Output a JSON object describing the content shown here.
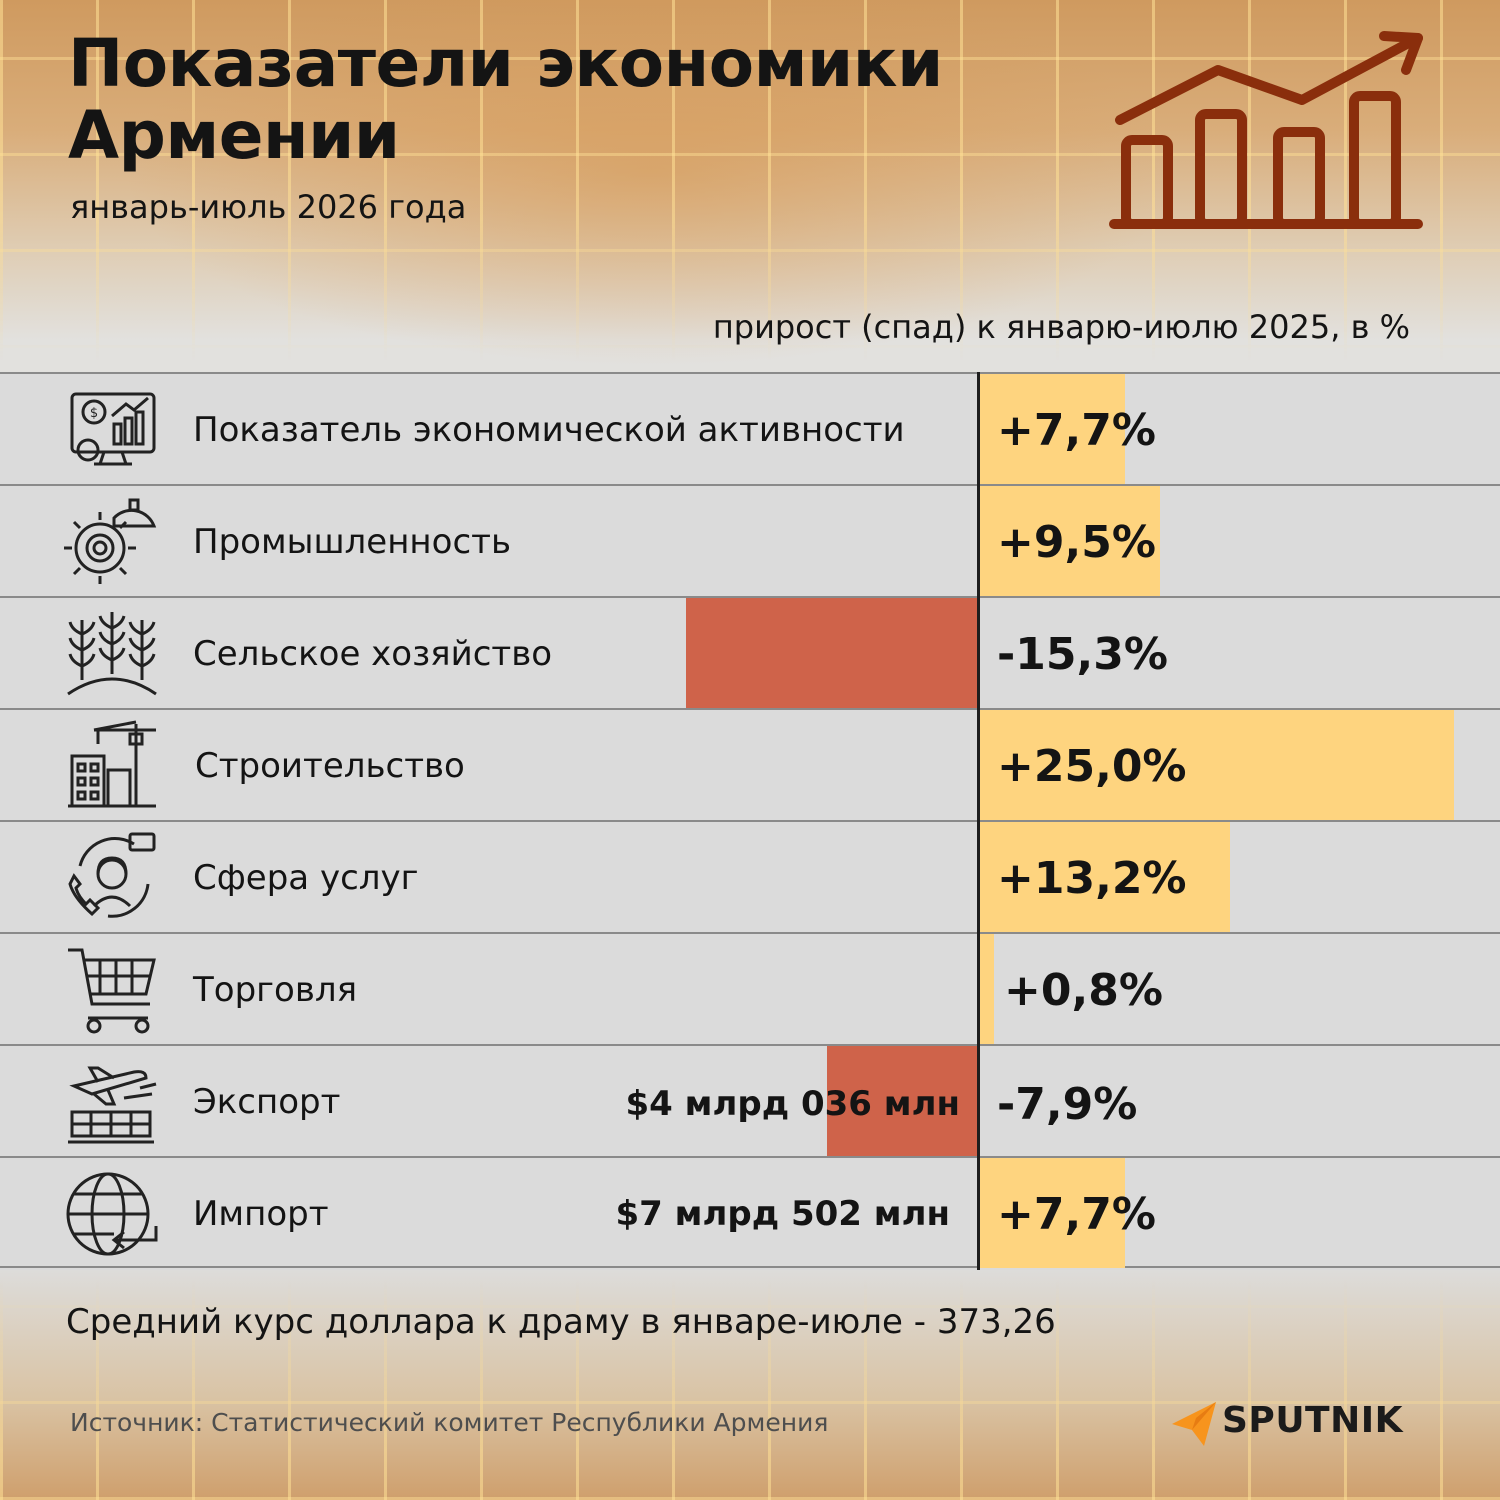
{
  "header": {
    "title": "Показатели экономики Армении",
    "subtitle": "январь-июль 2026 года",
    "column_label": "прирост (спад) к январю-июлю 2025, в %"
  },
  "rows": [
    {
      "label": "Показатель экономической активности",
      "value_label": "+7,7%",
      "amount": "",
      "icon": "economic-activity-icon"
    },
    {
      "label": "Промышленность",
      "value_label": "+9,5%",
      "amount": "",
      "icon": "industry-gear-icon"
    },
    {
      "label": "Сельское хозяйство",
      "value_label": "-15,3%",
      "amount": "",
      "icon": "wheat-icon"
    },
    {
      "label": "Строительство",
      "value_label": "+25,0%",
      "amount": "",
      "icon": "construction-crane-icon"
    },
    {
      "label": "Сфера услуг",
      "value_label": "+13,2%",
      "amount": "",
      "icon": "customer-service-icon"
    },
    {
      "label": "Торговля",
      "value_label": "+0,8%",
      "amount": "",
      "icon": "shopping-cart-icon"
    },
    {
      "label": "Экспорт",
      "value_label": "-7,9%",
      "amount": "$4 млрд 036 млн",
      "icon": "export-plane-icon"
    },
    {
      "label": "Импорт",
      "value_label": "+7,7%",
      "amount": "$7 млрд 502 млн",
      "icon": "import-globe-icon"
    }
  ],
  "chart_data": {
    "type": "bar",
    "orientation": "horizontal",
    "categories": [
      "Показатель экономической активности",
      "Промышленность",
      "Сельское хозяйство",
      "Строительство",
      "Сфера услуг",
      "Торговля",
      "Экспорт",
      "Импорт"
    ],
    "values": [
      7.7,
      9.5,
      -15.3,
      25.0,
      13.2,
      0.8,
      -7.9,
      7.7
    ],
    "title": "Показатели экономики Армении",
    "subtitle": "январь-июль 2026 года",
    "value_axis_label": "прирост (спад) к январю-июлю 2025, в %",
    "annotations": {
      "Экспорт": "$4 млрд 036 млн",
      "Импорт": "$7 млрд 502 млн"
    },
    "colors": {
      "positive": "#fed47f",
      "negative": "#cf634a"
    },
    "grid": false,
    "legend": "none"
  },
  "footer": {
    "note": "Средний курс доллара к драму в январе-июле - 373,26",
    "source": "Источник: Статистический комитет Республики Армения",
    "brand": "SPUTNIK"
  },
  "colors": {
    "positive": "#fed47f",
    "negative": "#cf634a",
    "icon_brown": "#8a2e0c",
    "brand_orange": "#f7941d"
  }
}
